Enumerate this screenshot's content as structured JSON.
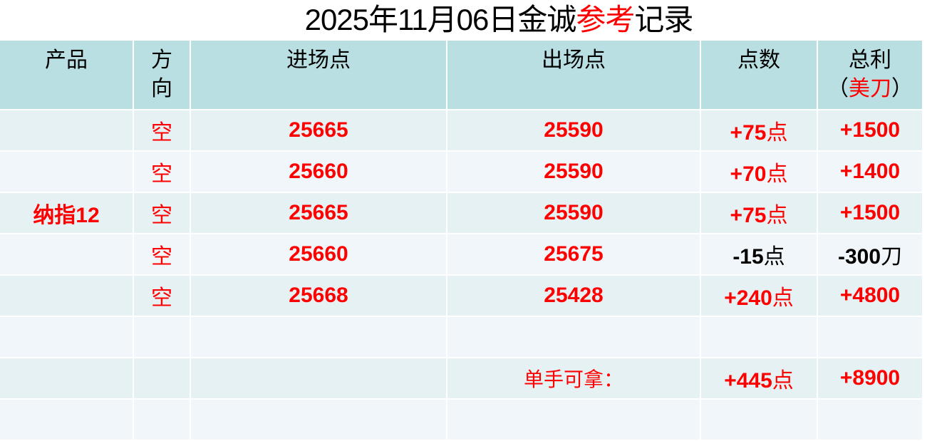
{
  "title": {
    "part1": "2025年11月06日金诚",
    "part2": "参考",
    "part3": "记录"
  },
  "headers": {
    "product": "产品",
    "direction_line1": "方",
    "direction_line2": "向",
    "entry": "进场点",
    "exit": "出场点",
    "points": "点数",
    "profit_line1": "总利",
    "profit_open": "（",
    "profit_unit": "美刀",
    "profit_close": "）"
  },
  "product": "纳指12",
  "rows": [
    {
      "direction": "空",
      "entry": "25665",
      "exit": "25590",
      "points": "+75",
      "points_unit": "点",
      "profit": "+1500",
      "profit_unit": ""
    },
    {
      "direction": "空",
      "entry": "25660",
      "exit": "25590",
      "points": "+70",
      "points_unit": "点",
      "profit": "+1400",
      "profit_unit": ""
    },
    {
      "direction": "空",
      "entry": "25665",
      "exit": "25590",
      "points": "+75",
      "points_unit": "点",
      "profit": "+1500",
      "profit_unit": ""
    },
    {
      "direction": "空",
      "entry": "25660",
      "exit": "25675",
      "points": "-15",
      "points_unit": "点",
      "profit": "-300",
      "profit_unit": "刀"
    },
    {
      "direction": "空",
      "entry": "25668",
      "exit": "25428",
      "points": "+240",
      "points_unit": "点",
      "profit": "+4800",
      "profit_unit": ""
    }
  ],
  "total": {
    "label": "单手可拿：",
    "points": "+445",
    "points_unit": "点",
    "profit": "+8900"
  },
  "colors": {
    "header_bg": "#b9dfe2",
    "row_bg_a": "#e6f1f3",
    "row_bg_b": "#f0f6f9",
    "profit": "#ff0000",
    "loss": "#000000"
  }
}
